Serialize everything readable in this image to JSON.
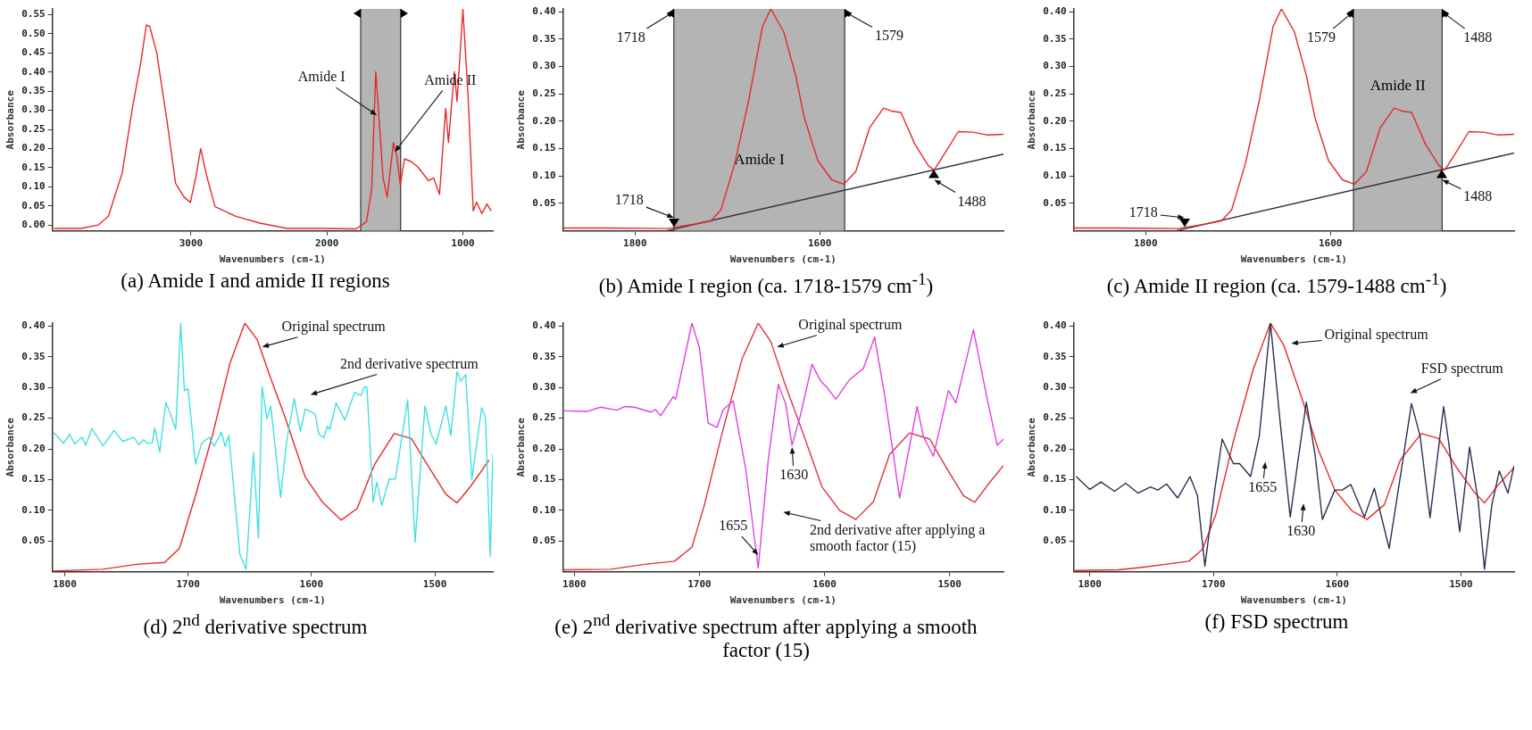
{
  "chart_data": [
    {
      "type": "line",
      "title": "(a)  Amide I and amide II regions",
      "xlabel": "Wavenumbers (cm-1)",
      "ylabel": "Absorbance",
      "xlim": [
        4020,
        780
      ],
      "ylim": [
        -0.015,
        0.565
      ],
      "xticks": [
        3000,
        2000,
        1000
      ],
      "yticks": [
        {
          "value": 0,
          "label": "0.00"
        },
        0.05,
        {
          "value": 0.1,
          "label": "0.10"
        },
        0.15,
        {
          "value": 0.2,
          "label": "0.20"
        },
        0.25,
        {
          "value": 0.3,
          "label": "0.30"
        },
        0.35,
        {
          "value": 0.4,
          "label": "0.40"
        },
        0.45,
        {
          "value": 0.5,
          "label": "0.50"
        },
        0.55
      ],
      "grid": false,
      "legend": false,
      "series": [
        {
          "type": "line",
          "color": "#e8282a",
          "x": [
            4008,
            3810,
            3684,
            3608,
            3506,
            3430,
            3367,
            3329,
            3304,
            3253,
            3177,
            3114,
            3051,
            3005,
            2962,
            2929,
            2886,
            2823,
            2671,
            2494,
            2291,
            2038,
            1785,
            1709,
            1671,
            1641,
            1620,
            1587,
            1557,
            1532,
            1511,
            1486,
            1461,
            1430,
            1380,
            1329,
            1253,
            1215,
            1172,
            1127,
            1106,
            1063,
            1043,
            1000,
            962,
            924,
            899,
            861,
            823,
            792
          ],
          "values": [
            -0.009,
            -0.009,
            0.0,
            0.023,
            0.137,
            0.309,
            0.43,
            0.523,
            0.519,
            0.451,
            0.273,
            0.109,
            0.073,
            0.059,
            0.13,
            0.2,
            0.13,
            0.048,
            0.023,
            0.005,
            -0.009,
            -0.009,
            -0.01,
            0.009,
            0.094,
            0.401,
            0.294,
            0.123,
            0.073,
            0.151,
            0.216,
            0.18,
            0.105,
            0.173,
            0.166,
            0.151,
            0.116,
            0.123,
            0.08,
            0.305,
            0.216,
            0.401,
            0.323,
            0.564,
            0.337,
            0.037,
            0.06,
            0.03,
            0.055,
            0.037
          ]
        }
      ],
      "bands": [
        {
          "axis": "x",
          "from": 1752,
          "to": 1458,
          "color": "#b4b4b4"
        }
      ],
      "ref_lines": [
        {
          "axis": "x",
          "value": 1752,
          "color": "#333333"
        },
        {
          "axis": "x",
          "value": 1458,
          "color": "#333333"
        }
      ],
      "annotations": [
        {
          "text": "Amide I",
          "x": 1633,
          "y": 0.287
        },
        {
          "text": "Amide II",
          "x": 1501,
          "y": 0.191
        }
      ]
    },
    {
      "type": "line",
      "title": "(b)  Amide I region (ca. 1718-1579 cm$^{-1}$)",
      "xlabel": "Wavenumbers (cm-1)",
      "ylabel": "Absorbance",
      "xlim": [
        1878,
        1401
      ],
      "ylim": [
        0,
        0.405
      ],
      "xticks": [
        1800,
        1600
      ],
      "yticks": [
        0.05,
        {
          "value": 0.1,
          "label": "0.10"
        },
        0.15,
        {
          "value": 0.2,
          "label": "0.20"
        },
        0.25,
        {
          "value": 0.3,
          "label": "0.30"
        },
        0.35,
        {
          "value": 0.4,
          "label": "0.40"
        }
      ],
      "grid": false,
      "legend": false,
      "series": [
        {
          "type": "line",
          "color": "#e8282a",
          "x": [
            1878,
            1834,
            1766,
            1758,
            1733,
            1718,
            1707,
            1692,
            1677,
            1662,
            1653,
            1639,
            1626,
            1617,
            1602,
            1587,
            1574,
            1561,
            1546,
            1531,
            1521,
            1512,
            1497,
            1482,
            1476,
            1464,
            1450,
            1434,
            1419,
            1401
          ],
          "values": [
            0.005,
            0.005,
            0.004,
            0.006,
            0.013,
            0.018,
            0.038,
            0.123,
            0.238,
            0.373,
            0.405,
            0.363,
            0.283,
            0.208,
            0.128,
            0.093,
            0.085,
            0.108,
            0.188,
            0.224,
            0.218,
            0.216,
            0.158,
            0.118,
            0.111,
            0.143,
            0.181,
            0.18,
            0.175,
            0.176
          ]
        },
        {
          "type": "line",
          "color": "#333333",
          "x": [
            1766,
            1401
          ],
          "values": [
            0.0,
            0.14
          ]
        }
      ],
      "bands": [
        {
          "axis": "x",
          "from": 1758,
          "to": 1573,
          "label": "Amide I",
          "color": "#b4b4b4"
        }
      ],
      "ref_lines": [
        {
          "axis": "x",
          "value": 1758,
          "color": "#333333"
        },
        {
          "axis": "x",
          "value": 1573,
          "color": "#333333"
        }
      ],
      "annotations": [
        {
          "text": "1718",
          "x": 1758,
          "y": 0.4
        },
        {
          "text": "1579",
          "x": 1573,
          "y": 0.4
        },
        {
          "text": "1718",
          "x": 1758,
          "y": 0.006
        },
        {
          "text": "1488",
          "x": 1476,
          "y": 0.111
        }
      ]
    },
    {
      "type": "line",
      "title": "(c)  Amide II region (ca. 1579-1488 cm$^{-1}$)",
      "xlabel": "Wavenumbers (cm-1)",
      "ylabel": "Absorbance",
      "xlim": [
        1878,
        1401
      ],
      "ylim": [
        0,
        0.405
      ],
      "xticks": [
        1800,
        1600
      ],
      "yticks": [
        0.05,
        {
          "value": 0.1,
          "label": "0.10"
        },
        0.15,
        {
          "value": 0.2,
          "label": "0.20"
        },
        0.25,
        {
          "value": 0.3,
          "label": "0.30"
        },
        0.35,
        {
          "value": 0.4,
          "label": "0.40"
        }
      ],
      "grid": false,
      "legend": false,
      "series": [
        {
          "type": "line",
          "color": "#e8282a",
          "x": [
            1878,
            1834,
            1766,
            1758,
            1733,
            1718,
            1707,
            1692,
            1677,
            1662,
            1653,
            1639,
            1626,
            1617,
            1602,
            1587,
            1574,
            1561,
            1546,
            1531,
            1521,
            1512,
            1497,
            1482,
            1476,
            1464,
            1450,
            1434,
            1419,
            1401
          ],
          "values": [
            0.005,
            0.005,
            0.004,
            0.006,
            0.013,
            0.018,
            0.038,
            0.123,
            0.238,
            0.373,
            0.405,
            0.363,
            0.283,
            0.208,
            0.128,
            0.093,
            0.085,
            0.108,
            0.188,
            0.224,
            0.218,
            0.216,
            0.158,
            0.118,
            0.111,
            0.143,
            0.181,
            0.18,
            0.175,
            0.176
          ]
        },
        {
          "type": "line",
          "color": "#333333",
          "x": [
            1767,
            1401
          ],
          "values": [
            0.0,
            0.142
          ]
        }
      ],
      "bands": [
        {
          "axis": "x",
          "from": 1575,
          "to": 1479,
          "label": "Amide II",
          "color": "#b4b4b4"
        }
      ],
      "ref_lines": [
        {
          "axis": "x",
          "value": 1575,
          "color": "#333333"
        },
        {
          "axis": "x",
          "value": 1479,
          "color": "#333333"
        }
      ],
      "annotations": [
        {
          "text": "1579",
          "x": 1575,
          "y": 0.4
        },
        {
          "text": "1488",
          "x": 1479,
          "y": 0.4
        },
        {
          "text": "1718",
          "x": 1758,
          "y": 0.006
        },
        {
          "text": "1488",
          "x": 1479,
          "y": 0.111
        }
      ]
    },
    {
      "type": "line",
      "title": "(d) 2$^{nd}$ derivative spectrum",
      "xlabel": "Wavenumbers (cm-1)",
      "ylabel": "Absorbance",
      "xlim": [
        1810,
        1453
      ],
      "ylim": [
        0,
        0.405
      ],
      "xticks": [
        1800,
        1700,
        1600,
        1500
      ],
      "yticks": [
        0.05,
        {
          "value": 0.1,
          "label": "0.10"
        },
        0.15,
        {
          "value": 0.2,
          "label": "0.20"
        },
        0.25,
        {
          "value": 0.3,
          "label": "0.30"
        },
        0.35,
        {
          "value": 0.4,
          "label": "0.40"
        }
      ],
      "grid": false,
      "legend": false,
      "series": [
        {
          "type": "line",
          "color": "#40e0e0",
          "x": [
            1809,
            1801,
            1796,
            1792,
            1786,
            1783,
            1778,
            1769,
            1760,
            1753,
            1744,
            1740,
            1736,
            1733,
            1729,
            1727,
            1723,
            1718,
            1714,
            1710,
            1706,
            1703,
            1700,
            1694,
            1689,
            1683,
            1679,
            1673,
            1670,
            1667,
            1658,
            1653,
            1647,
            1643,
            1640,
            1636,
            1633,
            1625,
            1620,
            1614,
            1609,
            1605,
            1597,
            1594,
            1590,
            1587,
            1585,
            1580,
            1573,
            1565,
            1560,
            1557,
            1555,
            1550,
            1547,
            1543,
            1537,
            1532,
            1522,
            1516,
            1508,
            1503,
            1499,
            1491,
            1487,
            1482,
            1479,
            1475,
            1470,
            1462,
            1459,
            1455,
            1453
          ],
          "values": [
            0.227,
            0.209,
            0.224,
            0.208,
            0.219,
            0.206,
            0.233,
            0.205,
            0.23,
            0.212,
            0.219,
            0.207,
            0.215,
            0.209,
            0.21,
            0.234,
            0.195,
            0.276,
            0.255,
            0.232,
            0.405,
            0.295,
            0.298,
            0.175,
            0.209,
            0.219,
            0.204,
            0.227,
            0.204,
            0.222,
            0.028,
            0.004,
            0.194,
            0.055,
            0.301,
            0.249,
            0.27,
            0.121,
            0.214,
            0.282,
            0.229,
            0.265,
            0.257,
            0.224,
            0.218,
            0.237,
            0.232,
            0.275,
            0.247,
            0.292,
            0.287,
            0.301,
            0.3,
            0.113,
            0.146,
            0.108,
            0.151,
            0.151,
            0.28,
            0.048,
            0.27,
            0.224,
            0.208,
            0.27,
            0.222,
            0.326,
            0.31,
            0.321,
            0.15,
            0.267,
            0.252,
            0.025,
            0.192
          ]
        },
        {
          "type": "line",
          "color": "#e8282a",
          "x": [
            1810,
            1769,
            1742,
            1719,
            1707,
            1694,
            1680,
            1666,
            1654,
            1644,
            1633,
            1622,
            1605,
            1591,
            1576,
            1563,
            1549,
            1533,
            1519,
            1506,
            1491,
            1482,
            1471,
            1456
          ],
          "values": [
            0.001,
            0.004,
            0.012,
            0.015,
            0.038,
            0.124,
            0.224,
            0.34,
            0.405,
            0.378,
            0.315,
            0.255,
            0.154,
            0.113,
            0.084,
            0.103,
            0.174,
            0.225,
            0.217,
            0.174,
            0.126,
            0.112,
            0.139,
            0.182
          ]
        }
      ],
      "annotations": [
        {
          "text": "Original spectrum",
          "x": 1640,
          "y": 0.366
        },
        "2nd derivative spectrum"
      ]
    },
    {
      "type": "line",
      "title": "(e) 2$^{nd}$ derivative spectrum after applying a smooth factor (15)",
      "xlabel": "Wavenumbers (cm-1)",
      "ylabel": "Absorbance",
      "xlim": [
        1809,
        1457
      ],
      "ylim": [
        0,
        0.405
      ],
      "xticks": [
        1800,
        1700,
        1600,
        1500
      ],
      "yticks": [
        0.05,
        {
          "value": 0.1,
          "label": "0.10"
        },
        0.15,
        {
          "value": 0.2,
          "label": "0.20"
        },
        0.25,
        {
          "value": 0.3,
          "label": "0.30"
        },
        0.35,
        {
          "value": 0.4,
          "label": "0.40"
        }
      ],
      "grid": false,
      "legend": false,
      "series": [
        {
          "type": "line",
          "color": "#e040e0",
          "x": [
            1808,
            1790,
            1779,
            1766,
            1760,
            1752,
            1739,
            1735,
            1731,
            1721,
            1719,
            1706,
            1700,
            1693,
            1686,
            1681,
            1673,
            1663,
            1653,
            1645,
            1637,
            1631,
            1626,
            1619,
            1610,
            1603,
            1598,
            1591,
            1580,
            1569,
            1560,
            1552,
            1540,
            1526,
            1521,
            1513,
            1501,
            1495,
            1481,
            1470,
            1462,
            1457
          ],
          "values": [
            0.262,
            0.261,
            0.268,
            0.263,
            0.269,
            0.268,
            0.26,
            0.264,
            0.254,
            0.285,
            0.281,
            0.405,
            0.365,
            0.242,
            0.235,
            0.264,
            0.278,
            0.167,
            0.006,
            0.182,
            0.305,
            0.273,
            0.206,
            0.257,
            0.338,
            0.31,
            0.3,
            0.281,
            0.313,
            0.331,
            0.382,
            0.288,
            0.12,
            0.269,
            0.22,
            0.188,
            0.295,
            0.275,
            0.394,
            0.281,
            0.206,
            0.216
          ]
        },
        {
          "type": "line",
          "color": "#e03040",
          "x": [
            1809,
            1771,
            1744,
            1720,
            1706,
            1696,
            1682,
            1666,
            1653,
            1643,
            1631,
            1618,
            1602,
            1588,
            1575,
            1561,
            1548,
            1532,
            1516,
            1502,
            1489,
            1480,
            1467,
            1457
          ],
          "values": [
            0.003,
            0.004,
            0.012,
            0.017,
            0.04,
            0.109,
            0.225,
            0.346,
            0.405,
            0.375,
            0.302,
            0.23,
            0.138,
            0.1,
            0.085,
            0.114,
            0.191,
            0.226,
            0.216,
            0.167,
            0.124,
            0.113,
            0.148,
            0.173
          ]
        }
      ],
      "annotations": [
        {
          "text": "Original spectrum",
          "x": 1638,
          "y": 0.366
        },
        {
          "text": "1630",
          "x": 1626,
          "y": 0.203
        },
        {
          "text": "1655",
          "x": 1653,
          "y": 0.027
        },
        "2nd derivative after applying a smooth factor (15)"
      ]
    },
    {
      "type": "line",
      "title": "(f)  FSD spectrum",
      "xlabel": "Wavenumbers (cm-1)",
      "ylabel": "Absorbance",
      "xlim": [
        1813,
        1457
      ],
      "ylim": [
        0,
        0.405
      ],
      "xticks": [
        1800,
        1700,
        1600,
        1500
      ],
      "yticks": [
        0.05,
        {
          "value": 0.1,
          "label": "0.10"
        },
        0.15,
        {
          "value": 0.2,
          "label": "0.20"
        },
        0.25,
        {
          "value": 0.3,
          "label": "0.30"
        },
        0.35,
        {
          "value": 0.4,
          "label": "0.40"
        }
      ],
      "grid": false,
      "legend": false,
      "series": [
        {
          "type": "line",
          "color": "#2a2f4f",
          "x": [
            1811,
            1800,
            1791,
            1780,
            1771,
            1761,
            1751,
            1745,
            1738,
            1729,
            1719,
            1713,
            1707,
            1699,
            1693,
            1684,
            1679,
            1670,
            1663,
            1654,
            1646,
            1638,
            1632,
            1625,
            1618,
            1612,
            1602,
            1596,
            1589,
            1578,
            1570,
            1558,
            1548,
            1540,
            1533,
            1525,
            1514,
            1510,
            1501,
            1493,
            1486,
            1481,
            1475,
            1469,
            1462,
            1457
          ],
          "values": [
            0.155,
            0.134,
            0.146,
            0.131,
            0.144,
            0.128,
            0.138,
            0.133,
            0.143,
            0.12,
            0.155,
            0.124,
            0.009,
            0.133,
            0.216,
            0.176,
            0.176,
            0.155,
            0.221,
            0.405,
            0.241,
            0.089,
            0.177,
            0.276,
            0.192,
            0.085,
            0.133,
            0.133,
            0.142,
            0.089,
            0.136,
            0.038,
            0.168,
            0.274,
            0.221,
            0.088,
            0.269,
            0.212,
            0.065,
            0.203,
            0.114,
            0.004,
            0.109,
            0.164,
            0.128,
            0.173
          ]
        },
        {
          "type": "line",
          "color": "#e8282a",
          "x": [
            1812,
            1777,
            1758,
            1739,
            1720,
            1709,
            1698,
            1684,
            1668,
            1654,
            1643,
            1629,
            1615,
            1602,
            1588,
            1576,
            1562,
            1549,
            1532,
            1518,
            1503,
            1489,
            1481,
            1470,
            1457
          ],
          "values": [
            0.002,
            0.003,
            0.007,
            0.012,
            0.017,
            0.036,
            0.094,
            0.212,
            0.329,
            0.405,
            0.368,
            0.285,
            0.197,
            0.133,
            0.099,
            0.085,
            0.109,
            0.182,
            0.225,
            0.217,
            0.168,
            0.129,
            0.112,
            0.141,
            0.17
          ]
        }
      ],
      "annotations": [
        "Original spectrum",
        "FSD spectrum",
        "1655",
        "1630"
      ]
    }
  ]
}
